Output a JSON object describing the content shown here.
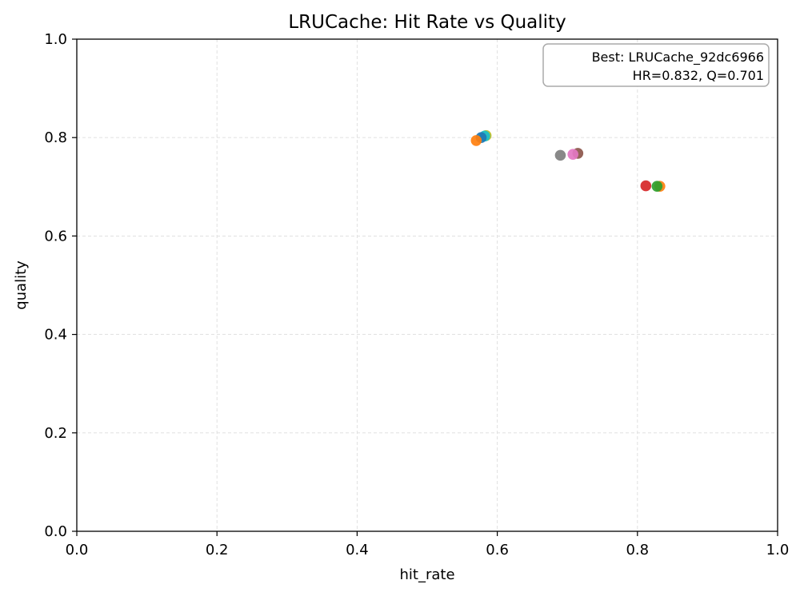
{
  "chart_data": {
    "type": "scatter",
    "title": "LRUCache: Hit Rate vs Quality",
    "xlabel": "hit_rate",
    "ylabel": "quality",
    "xlim": [
      0.0,
      1.0
    ],
    "ylim": [
      0.0,
      1.0
    ],
    "x_ticks": [
      "0.0",
      "0.2",
      "0.4",
      "0.6",
      "0.8",
      "1.0"
    ],
    "y_ticks": [
      "0.0",
      "0.2",
      "0.4",
      "0.6",
      "0.8",
      "1.0"
    ],
    "grid": true,
    "annotation": {
      "placement": "top-right",
      "line1": "Best: LRUCache_92dc6966",
      "line2": "HR=0.832, Q=0.701"
    },
    "points": [
      {
        "x": 0.584,
        "y": 0.804,
        "color": "#bcbd22"
      },
      {
        "x": 0.582,
        "y": 0.803,
        "color": "#17becf"
      },
      {
        "x": 0.577,
        "y": 0.8,
        "color": "#1f77b4"
      },
      {
        "x": 0.57,
        "y": 0.794,
        "color": "#ff7f0e"
      },
      {
        "x": 0.715,
        "y": 0.768,
        "color": "#8c564b"
      },
      {
        "x": 0.708,
        "y": 0.766,
        "color": "#e377c2"
      },
      {
        "x": 0.69,
        "y": 0.764,
        "color": "#7f7f7f"
      },
      {
        "x": 0.832,
        "y": 0.701,
        "color": "#ff7f0e"
      },
      {
        "x": 0.828,
        "y": 0.701,
        "color": "#2ca02c"
      },
      {
        "x": 0.812,
        "y": 0.702,
        "color": "#d62728"
      }
    ]
  }
}
